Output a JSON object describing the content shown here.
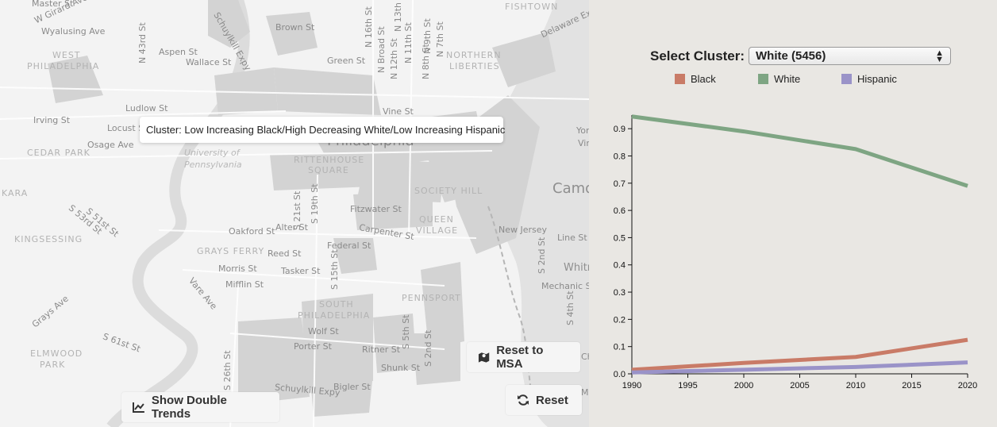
{
  "map": {
    "tooltip": "Cluster: Low Increasing Black/High Decreasing White/Low Increasing Hispanic",
    "labels": {
      "master": "Master St",
      "girard": "W Girard Ave",
      "wyalusing": "Wyalusing Ave",
      "west_phila_1": "WEST",
      "west_phila_2": "PHILADELPHIA",
      "aspen": "Aspen St",
      "wallace": "Wallace St",
      "n43": "N 43rd St",
      "schuylkill": "Schuylkill Expy",
      "brown": "Brown St",
      "green": "Green St",
      "n16": "N 16th St",
      "broad": "N Broad St",
      "n12": "N 12th St",
      "n11": "N 11th St",
      "n9": "N 9th St",
      "n8": "N 8th St",
      "n13": "N 13th St",
      "n7": "N 7th St",
      "northern1": "NORTHERN",
      "northern2": "LIBERTIES",
      "fishtown": "FISHTOWN",
      "delaware": "Delaware Exp",
      "vine": "Vine St",
      "ludlow": "Ludlow St",
      "irving": "Irving St",
      "locust": "Locust St",
      "osage": "Osage Ave",
      "cedar": "CEDAR PARK",
      "philadelphia": "Philadelphia",
      "upenn1": "University of",
      "upenn2": "Pennsylvania",
      "rittenhouse1": "RITTENHOUSE",
      "rittenhouse2": "SQUARE",
      "society": "SOCIETY HILL",
      "camden": "Camde",
      "york": "York",
      "vine2": "Vine",
      "kara": "KARA",
      "s51": "S 51st St",
      "s53": "S 53rd St",
      "s21": "S 21st St",
      "s19": "S 19th St",
      "fitzwater": "Fitzwater St",
      "queen1": "QUEEN",
      "queen2": "VILLAGE",
      "alter": "Alter St",
      "carpenter": "Carpenter St",
      "oakford": "Oakford St",
      "federal": "Federal St",
      "newjersey": "New Jersey",
      "line": "Line St",
      "kingsessing": "KINGSESSING",
      "grays_ferry": "GRAYS FERRY",
      "reed": "Reed St",
      "morris": "Morris St",
      "tasker": "Tasker St",
      "mifflin": "Mifflin St",
      "vare": "Vare Ave",
      "s15": "S 15th St",
      "s2nd": "S 2nd St",
      "whitm": "Whitm",
      "mechanic": "Mechanic St",
      "south1": "SOUTH",
      "south2": "PHILADELPHIA",
      "pennsport": "PENNSPORT",
      "s4th": "S 4th St",
      "grays_ave": "Grays Ave",
      "wolf": "Wolf St",
      "porter": "Porter St",
      "ritner": "Ritner St",
      "shunk": "Shunk St",
      "s5th": "S 5th St",
      "s2nd_b": "S 2nd St",
      "s61": "S 61st St",
      "elmwood1": "ELMWOOD",
      "elmwood2": "PARK",
      "s26": "S 26th St",
      "bigler": "Bigler St",
      "schuylkill2": "Schuylkill Expy",
      "ch": "Ch",
      "mc": "Mc"
    },
    "buttons": {
      "reset_msa": "Reset to MSA",
      "reset": "Reset",
      "double_trends": "Show Double Trends"
    }
  },
  "panel": {
    "select_label": "Select Cluster:",
    "select_value": "White (5456)",
    "legend": [
      {
        "label": "Black",
        "color": "#c97b67"
      },
      {
        "label": "White",
        "color": "#7ea583"
      },
      {
        "label": "Hispanic",
        "color": "#9a93c8"
      }
    ]
  },
  "chart_data": {
    "type": "line",
    "x": [
      1990,
      2000,
      2010,
      2020
    ],
    "x_ticks": [
      "1990",
      "1995",
      "2000",
      "2005",
      "2010",
      "2015",
      "2020"
    ],
    "y_ticks": [
      "0.0",
      "0.1",
      "0.2",
      "0.3",
      "0.4",
      "0.5",
      "0.6",
      "0.7",
      "0.8",
      "0.9"
    ],
    "xlim": [
      1990,
      2020
    ],
    "ylim": [
      0,
      0.95
    ],
    "series": [
      {
        "name": "White",
        "color": "#7ea583",
        "values": [
          0.945,
          0.89,
          0.825,
          0.69
        ]
      },
      {
        "name": "Black",
        "color": "#c97b67",
        "values": [
          0.015,
          0.04,
          0.062,
          0.125
        ]
      },
      {
        "name": "Hispanic",
        "color": "#9a93c8",
        "values": [
          0.005,
          0.015,
          0.025,
          0.042
        ]
      }
    ]
  }
}
